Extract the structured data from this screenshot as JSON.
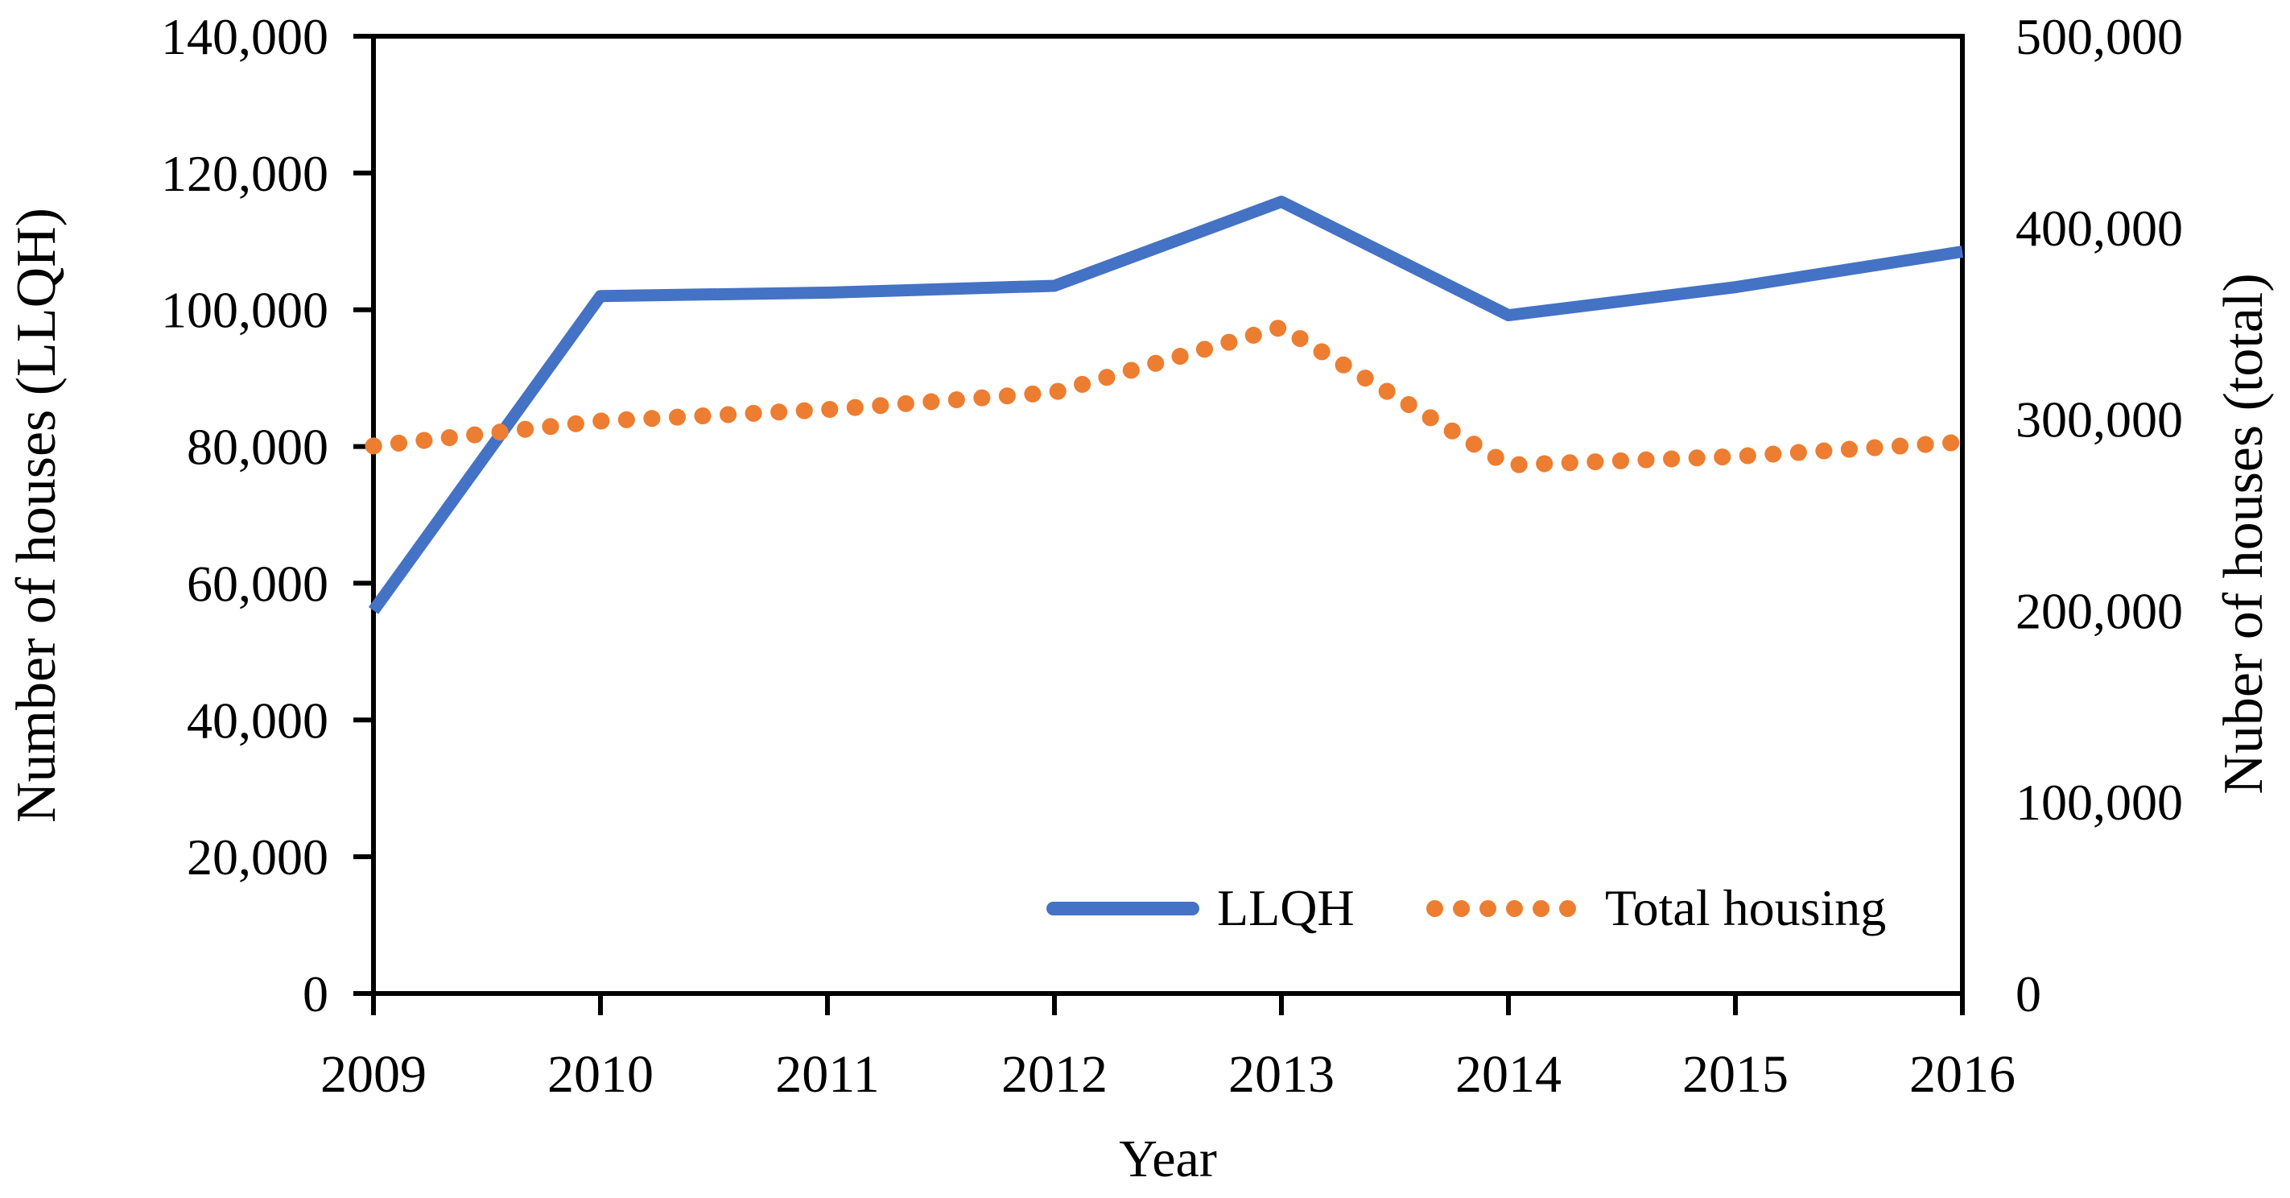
{
  "chart_data": {
    "type": "line",
    "x": [
      "2009",
      "2010",
      "2011",
      "2012",
      "2013",
      "2014",
      "2015",
      "2016"
    ],
    "series": [
      {
        "name": "LLQH",
        "axis": "left",
        "line_style": "solid",
        "color": "#4472C4",
        "values": [
          56000,
          102000,
          102500,
          103500,
          115800,
          99200,
          103300,
          108500
        ]
      },
      {
        "name": "Total housing",
        "axis": "right",
        "line_style": "dotted",
        "color": "#ED7D31",
        "values": [
          286000,
          299000,
          305000,
          314000,
          348000,
          276000,
          280500,
          288000
        ]
      }
    ],
    "title": "",
    "xlabel": "Year",
    "ylabel_left": "Number of houses (LLQH)",
    "ylabel_right": "Nuber of houses (total)",
    "ylim_left": [
      0,
      140000
    ],
    "ylim_right": [
      0,
      500000
    ],
    "left_tick_labels": [
      "0",
      "20,000",
      "40,000",
      "60,000",
      "80,000",
      "100,000",
      "120,000",
      "140,000"
    ],
    "right_tick_labels": [
      "0",
      "100,000",
      "200,000",
      "300,000",
      "400,000",
      "500,000"
    ],
    "grid": false,
    "legend_position": "inside-bottom",
    "axis_color": "#000000",
    "background_color": "#FFFFFF"
  }
}
